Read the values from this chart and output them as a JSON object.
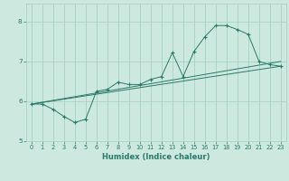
{
  "xlabel": "Humidex (Indice chaleur)",
  "bg_color": "#cce8df",
  "grid_color": "#9ecfbf",
  "line_color": "#2a7a6a",
  "xlim": [
    -0.5,
    23.5
  ],
  "ylim": [
    5.0,
    8.45
  ],
  "yticks": [
    5,
    6,
    7,
    8
  ],
  "xticks": [
    0,
    1,
    2,
    3,
    4,
    5,
    6,
    7,
    8,
    9,
    10,
    11,
    12,
    13,
    14,
    15,
    16,
    17,
    18,
    19,
    20,
    21,
    22,
    23
  ],
  "line1_x": [
    0,
    1,
    2,
    3,
    4,
    5,
    6,
    7,
    8,
    9,
    10,
    11,
    12,
    13,
    14,
    15,
    16,
    17,
    18,
    19,
    20,
    21,
    22,
    23
  ],
  "line1_y": [
    5.93,
    5.93,
    5.8,
    5.62,
    5.47,
    5.55,
    6.25,
    6.3,
    6.48,
    6.42,
    6.42,
    6.55,
    6.62,
    7.22,
    6.62,
    7.25,
    7.62,
    7.9,
    7.9,
    7.8,
    7.68,
    7.0,
    6.92,
    6.88
  ],
  "line2_x": [
    0,
    23
  ],
  "line2_y": [
    5.93,
    6.88
  ],
  "line3_x": [
    0,
    23
  ],
  "line3_y": [
    5.93,
    7.0
  ],
  "xlabel_fontsize": 6.0,
  "tick_fontsize": 4.8
}
